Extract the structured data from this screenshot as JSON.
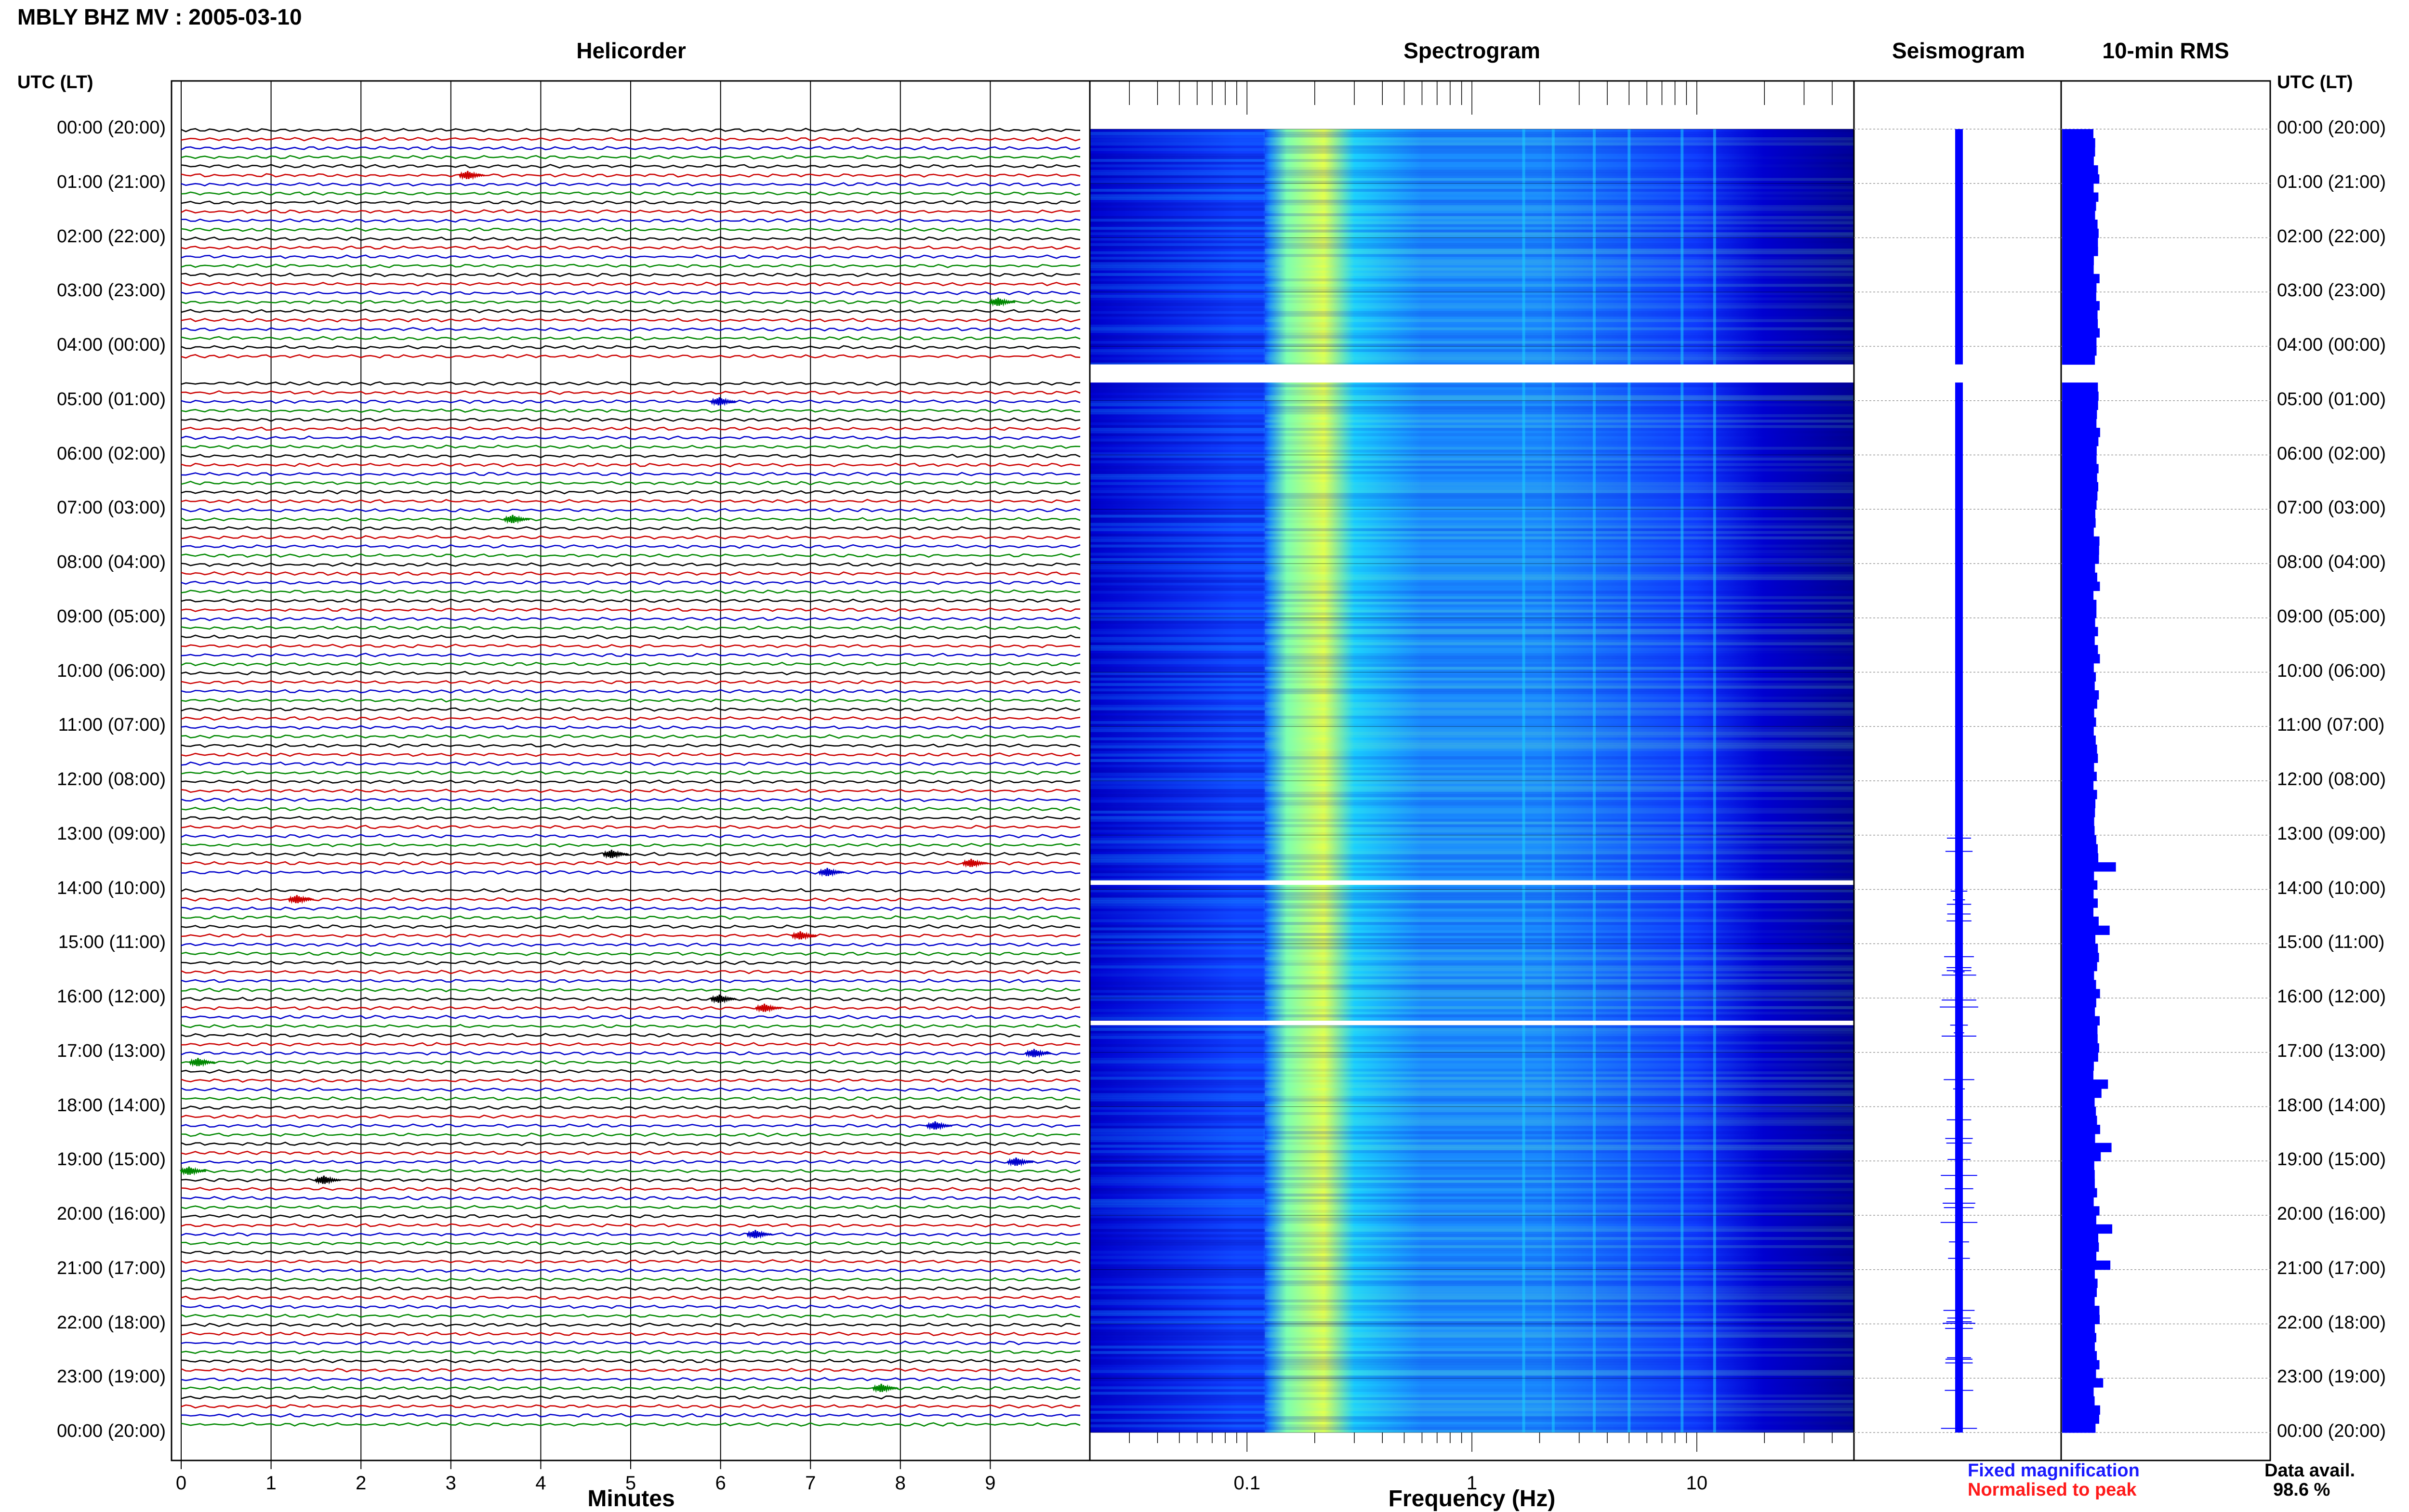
{
  "title": "MBLY BHZ MV : 2005-03-10",
  "panels": {
    "helicorder": "Helicorder",
    "spectrogram": "Spectrogram",
    "seismogram": "Seismogram",
    "rms": "10-min RMS"
  },
  "time_axis_header": "UTC (LT)",
  "time_labels": [
    "00:00 (20:00)",
    "01:00 (21:00)",
    "02:00 (22:00)",
    "03:00 (23:00)",
    "04:00 (00:00)",
    "05:00 (01:00)",
    "06:00 (02:00)",
    "07:00 (03:00)",
    "08:00 (04:00)",
    "09:00 (05:00)",
    "10:00 (06:00)",
    "11:00 (07:00)",
    "12:00 (08:00)",
    "13:00 (09:00)",
    "14:00 (10:00)",
    "15:00 (11:00)",
    "16:00 (12:00)",
    "17:00 (13:00)",
    "18:00 (14:00)",
    "19:00 (15:00)",
    "20:00 (16:00)",
    "21:00 (17:00)",
    "22:00 (18:00)",
    "23:00 (19:00)",
    "00:00 (20:00)"
  ],
  "legend": {
    "fixed": "Fixed magnification",
    "normalised": "Normalised to peak",
    "fixed_color": "#1a1aff",
    "normalised_color": "#ff1a1a"
  },
  "data_availability": {
    "label": "Data avail.",
    "value": "98.6 %"
  },
  "trace_colors": [
    "#000000",
    "#cc0000",
    "#0000cc",
    "#008800"
  ],
  "spectrogram_colormap": [
    "#00008f",
    "#0000d0",
    "#0f3dff",
    "#1a8cff",
    "#1ad0ff",
    "#7dffb0",
    "#e6ff4d"
  ],
  "chart_data": [
    {
      "type": "line",
      "panel": "Helicorder",
      "xlabel": "Minutes",
      "x_ticks": [
        "0",
        "1",
        "2",
        "3",
        "4",
        "5",
        "6",
        "7",
        "8",
        "9"
      ],
      "xlim": [
        0,
        10
      ],
      "row_minutes": 10,
      "rows": 144,
      "y_range": [
        "00:00 (20:00)",
        "00:00 (20:00)"
      ],
      "gaps": [
        {
          "start": "04:20",
          "end": "04:40"
        },
        {
          "start": "13:50",
          "end": "13:55"
        },
        {
          "start": "16:25",
          "end": "16:30"
        }
      ],
      "events": [
        {
          "time": "00:50",
          "minute": 3.2
        },
        {
          "time": "03:10",
          "minute": 9.1
        },
        {
          "time": "05:00",
          "minute": 6.0
        },
        {
          "time": "07:10",
          "minute": 3.7
        },
        {
          "time": "13:20",
          "minute": 4.8
        },
        {
          "time": "13:30",
          "minute": 8.8
        },
        {
          "time": "13:40",
          "minute": 7.2
        },
        {
          "time": "14:10",
          "minute": 1.3
        },
        {
          "time": "14:50",
          "minute": 6.9
        },
        {
          "time": "16:00",
          "minute": 6.0
        },
        {
          "time": "16:10",
          "minute": 6.5
        },
        {
          "time": "17:00",
          "minute": 9.5
        },
        {
          "time": "17:10",
          "minute": 0.2
        },
        {
          "time": "18:20",
          "minute": 8.4
        },
        {
          "time": "19:00",
          "minute": 9.3
        },
        {
          "time": "19:10",
          "minute": 0.1
        },
        {
          "time": "19:20",
          "minute": 1.6
        },
        {
          "time": "20:20",
          "minute": 6.4
        },
        {
          "time": "23:10",
          "minute": 7.8
        }
      ]
    },
    {
      "type": "heatmap",
      "panel": "Spectrogram",
      "xlabel": "Frequency (Hz)",
      "x_scale": "log",
      "xlim": [
        0.02,
        50
      ],
      "x_ticks": [
        "0.1",
        "1",
        "10"
      ],
      "x_tick_values": [
        0.1,
        1,
        10
      ],
      "y_range": [
        "00:00 (20:00)",
        "00:00 (20:00)"
      ],
      "features": {
        "microseism_peak_hz": [
          0.15,
          0.3
        ],
        "energy_cutoff_hz": 0.12,
        "high_freq_rolloff_hz": 10,
        "persistent_lines_hz": [
          1.7,
          2.3,
          3.5,
          5,
          8.6,
          12
        ]
      },
      "gaps": [
        {
          "start": "04:20",
          "end": "04:40"
        },
        {
          "start": "13:50",
          "end": "13:55"
        },
        {
          "start": "16:25",
          "end": "16:30"
        }
      ]
    },
    {
      "type": "line",
      "panel": "Seismogram",
      "y_range": [
        "00:00 (20:00)",
        "00:00 (20:00)"
      ],
      "gaps": [
        {
          "start": "04:20",
          "end": "04:40"
        }
      ]
    },
    {
      "type": "bar",
      "panel": "10-min RMS",
      "interval_minutes": 10,
      "y_range": [
        "00:00 (20:00)",
        "00:00 (20:00)"
      ],
      "relative_level": {
        "baseline": 0.6,
        "min": 0.5,
        "max": 0.95
      },
      "gaps": [
        {
          "start": "04:20",
          "end": "04:40"
        }
      ]
    }
  ]
}
